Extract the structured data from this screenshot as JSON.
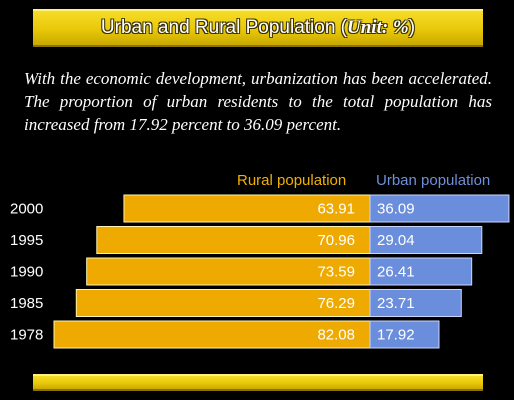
{
  "header": {
    "title": "Urban and Rural Population (",
    "unit": "Unit: %",
    "close": ")"
  },
  "description": "With the economic development, urbanization has been accelerated. The proportion of urban residents to the total population has increased from 17.92 percent to 36.09 percent.",
  "chart_data": {
    "type": "bar",
    "orientation": "horizontal",
    "stacked": true,
    "categories": [
      "2000",
      "1995",
      "1990",
      "1985",
      "1978"
    ],
    "series": [
      {
        "name": "Rural population",
        "values": [
          63.91,
          70.96,
          73.59,
          76.29,
          82.08
        ],
        "color": "#eeaa00"
      },
      {
        "name": "Urban population",
        "values": [
          36.09,
          29.04,
          26.41,
          23.71,
          17.92
        ],
        "color": "#6a8edc"
      }
    ],
    "value_labels": {
      "rural": [
        "63.91",
        "70.96",
        "73.59",
        "76.29",
        "82.08"
      ],
      "urban": [
        "36.09",
        "29.04",
        "26.41",
        "23.71",
        "17.92"
      ]
    },
    "xlim": [
      0,
      100
    ],
    "legend_position": "top",
    "grid": false
  },
  "colors": {
    "background": "#000000",
    "accent_yellow": "#e8c808",
    "rural": "#eeaa00",
    "urban": "#6a8edc"
  }
}
